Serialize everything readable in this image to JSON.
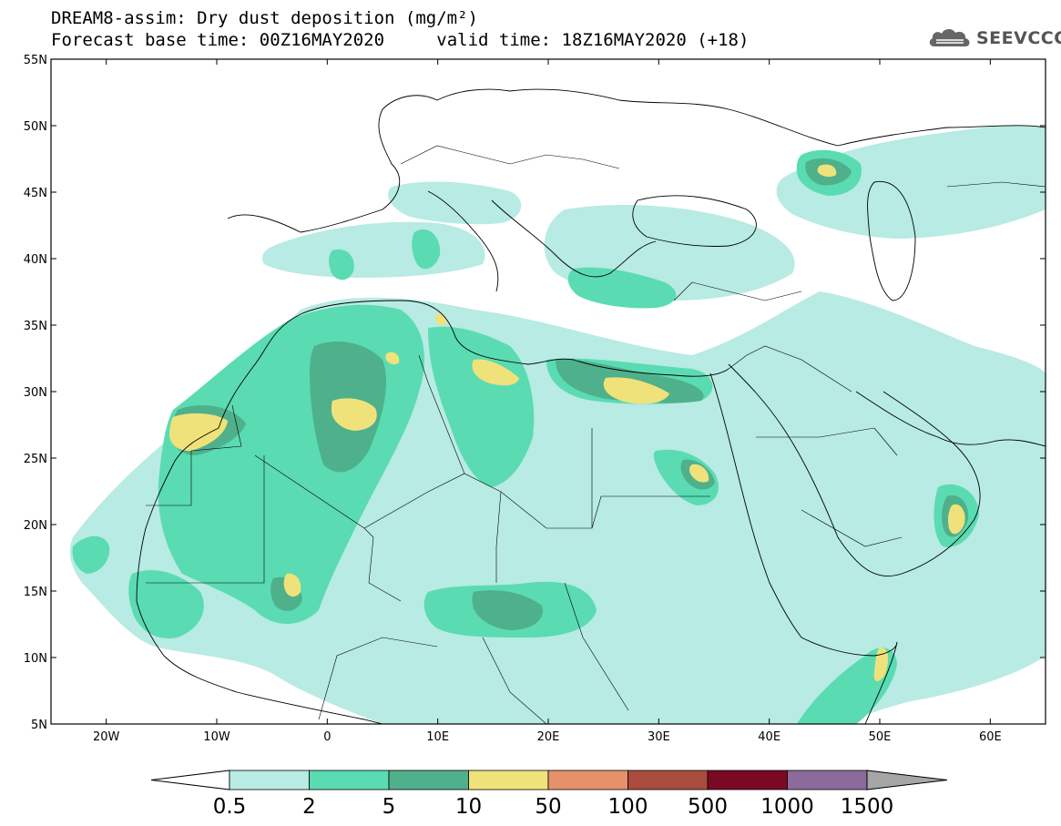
{
  "title": {
    "line1": "DREAM8-assim: Dry dust deposition (mg/m²)",
    "base_time_label": "Forecast base time: 00Z16MAY2020",
    "valid_time_label": "valid time: 18Z16MAY2020 (+18)"
  },
  "logo": {
    "text": "SEEVCCC",
    "icon": "cloud-logo-icon"
  },
  "map": {
    "region": "North Africa, Mediterranean, Middle East",
    "lon_range": [
      -25,
      65
    ],
    "lat_range": [
      5,
      55
    ],
    "lon_ticks": [
      {
        "value": -20,
        "label": "20W"
      },
      {
        "value": -10,
        "label": "10W"
      },
      {
        "value": 0,
        "label": "0"
      },
      {
        "value": 10,
        "label": "10E"
      },
      {
        "value": 20,
        "label": "20E"
      },
      {
        "value": 30,
        "label": "30E"
      },
      {
        "value": 40,
        "label": "40E"
      },
      {
        "value": 50,
        "label": "50E"
      },
      {
        "value": 60,
        "label": "60E"
      }
    ],
    "lat_ticks": [
      {
        "value": 55,
        "label": "55N"
      },
      {
        "value": 50,
        "label": "50N"
      },
      {
        "value": 45,
        "label": "45N"
      },
      {
        "value": 40,
        "label": "40N"
      },
      {
        "value": 35,
        "label": "35N"
      },
      {
        "value": 30,
        "label": "30N"
      },
      {
        "value": 25,
        "label": "25N"
      },
      {
        "value": 20,
        "label": "20N"
      },
      {
        "value": 15,
        "label": "15N"
      },
      {
        "value": 10,
        "label": "10N"
      },
      {
        "value": 5,
        "label": "5N"
      }
    ],
    "level_colors": [
      "#b7ebe3",
      "#5bdbb2",
      "#4fb08c",
      "#f0e27a"
    ],
    "coast_color": "#000000"
  },
  "colorbar": {
    "labels": [
      "0.5",
      "2",
      "5",
      "10",
      "50",
      "100",
      "500",
      "1000",
      "1500"
    ],
    "colors": [
      "#b7ebe3",
      "#5bdbb2",
      "#4fb08c",
      "#f0e27a",
      "#e5926a",
      "#a94c3e",
      "#7a0a23",
      "#8c6a9c"
    ],
    "under_color": "#ffffff",
    "over_color": "#a6a6a6"
  }
}
